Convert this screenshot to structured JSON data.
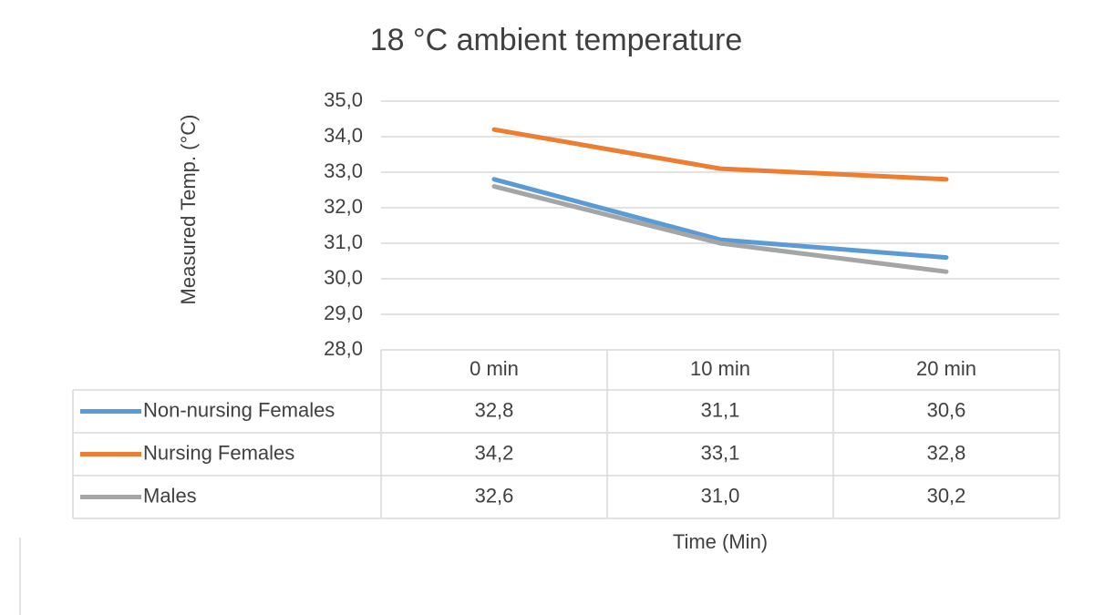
{
  "chart_data": {
    "type": "line",
    "title": "18 °C ambient temperature",
    "y_label": "Measured Temp. (°C)",
    "x_label": "Time (Min)",
    "categories": [
      "0 min",
      "10 min",
      "20 min"
    ],
    "series": [
      {
        "name": "Non-nursing Females",
        "color": "#5b9bd5",
        "values": [
          32.8,
          31.1,
          30.6
        ],
        "value_labels": [
          "32,8",
          "31,1",
          "30,6"
        ]
      },
      {
        "name": "Nursing Females",
        "color": "#ed7d31",
        "values": [
          34.2,
          33.1,
          32.8
        ],
        "value_labels": [
          "34,2",
          "33,1",
          "32,8"
        ]
      },
      {
        "name": "Males",
        "color": "#a5a5a5",
        "values": [
          32.6,
          31.0,
          30.2
        ],
        "value_labels": [
          "32,6",
          "31,0",
          "30,2"
        ]
      }
    ],
    "ylim": [
      28,
      35
    ],
    "yticks": [
      {
        "value": 28,
        "label": "28,0"
      },
      {
        "value": 29,
        "label": "29,0"
      },
      {
        "value": 30,
        "label": "30,0"
      },
      {
        "value": 31,
        "label": "31,0"
      },
      {
        "value": 32,
        "label": "32,0"
      },
      {
        "value": 33,
        "label": "33,0"
      },
      {
        "value": 34,
        "label": "34,0"
      },
      {
        "value": 35,
        "label": "35,0"
      }
    ],
    "grid": true,
    "data_table": true
  }
}
